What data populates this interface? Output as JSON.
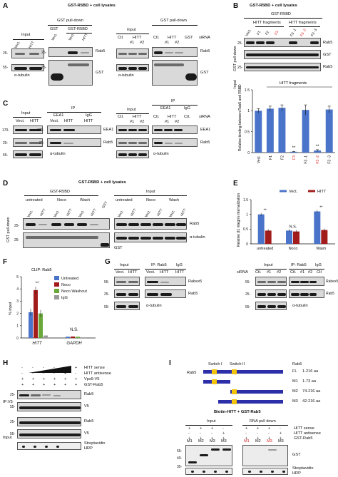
{
  "letters": [
    "A",
    "B",
    "C",
    "D",
    "E",
    "F",
    "G",
    "H",
    "I"
  ],
  "headings": {
    "a": "GST-R5BD + cell lysates",
    "b": "GST-R5BD + cell lysates",
    "d": "GST-R5BD + cell lysates",
    "i": "Biotin-HITT + GST-Rab5"
  },
  "labels": {
    "input": "Input",
    "gst_pulldown": "GST pull-down",
    "gst": "GST",
    "gst_r5bd": "GST-R5BD",
    "vect": "Vect.",
    "hitt": "HITT",
    "ctl": "Ctl.",
    "ctl2": "Ctl",
    "sirna": "siRNA",
    "n1": "#1",
    "n2": "#2",
    "rab5": "Rab5",
    "alpha_tubulin": "α-tubulin",
    "eea1": "EEA1",
    "ip": "IP",
    "igg": "IgG",
    "hitt_fragments": "HITT fragments",
    "gst_pulldown_axis": "GST pull-down",
    "input_axis": "Input",
    "untreated": "untreated",
    "noco": "Noco",
    "wash": "Wash",
    "rabex5": "Rabex5",
    "ip_rab5": "IP: Rab5",
    "hitt_sense": "HITT sense",
    "hitt_antisense": "HITT antisense",
    "vps9_v5": "Vps9-V5",
    "gst_rab5": "GST-Rab5",
    "ip_v5": "IP:V5",
    "v5": "V5",
    "streptavidin": "Streptavidin",
    "hrp": "HRP",
    "rna_pulldown": "RNA pull down",
    "switch1": "Switch I",
    "switch2": "Switch II",
    "clip_rab5": "CLIP: Rab5",
    "pct_input": "% input",
    "gapdh": "GAPDH",
    "plus": "+",
    "minus": "-",
    "sig2": "**",
    "ns": "N.S."
  },
  "markers": {
    "m25": "25-",
    "m55": "55-",
    "m170": "170-",
    "m40": "40-",
    "m35": "35-"
  },
  "fragments": [
    "F1",
    "F2",
    "F3",
    "F3 -1",
    "F3 -2",
    "F3 -3"
  ],
  "rab5_constructs": [
    {
      "name": "FL",
      "range": "1-216 aa"
    },
    {
      "name": "M1",
      "range": "1-73 aa"
    },
    {
      "name": "M2",
      "range": "74-216 aa"
    },
    {
      "name": "M3",
      "range": "42-216 aa"
    }
  ],
  "lanes_i": [
    "M1",
    "M2",
    "M3",
    "M3"
  ],
  "chart_data": [
    {
      "type": "bar",
      "panel": "B",
      "ylabel": "Relative binding between Rab5 and R5BD",
      "xlabel": "HITT fragments",
      "categories": [
        "Vect.",
        "F1",
        "F2",
        "F3",
        "F3 -1",
        "F3 -2",
        "F3 -3"
      ],
      "values": [
        1.0,
        1.05,
        1.07,
        0.02,
        1.02,
        0.05,
        1.03
      ],
      "errors": [
        0.05,
        0.06,
        0.07,
        0.01,
        0.12,
        0.02,
        0.08
      ],
      "significance": [
        "",
        "",
        "",
        "**",
        "",
        "**",
        ""
      ],
      "ylim": [
        0,
        1.5
      ],
      "yticks": [
        "0",
        "0.5",
        "1",
        "1.5"
      ],
      "color": "#4a74c9"
    },
    {
      "type": "bar",
      "panel": "E",
      "ylabel": "Relative β1 integrin internalization",
      "categories": [
        "untreated",
        "Noco",
        "Wash"
      ],
      "series": [
        {
          "name": "Vect.",
          "values": [
            1.0,
            0.45,
            1.1
          ],
          "color": "#4a74c9"
        },
        {
          "name": "HITT",
          "values": [
            0.45,
            0.42,
            0.47
          ],
          "color": "#a31c1c"
        }
      ],
      "significance": [
        "**",
        "N.S.",
        "**"
      ],
      "ylim": [
        0,
        1.5
      ],
      "yticks": [
        "0",
        "0.5",
        "1",
        "1.5"
      ]
    },
    {
      "type": "bar",
      "panel": "F",
      "ylabel": "% input",
      "categories": [
        "HITT",
        "GAPDH"
      ],
      "series": [
        {
          "name": "Untreated",
          "values": [
            2.1,
            0.1
          ],
          "color": "#4a74c9"
        },
        {
          "name": "Noco",
          "values": [
            3.9,
            0.12
          ],
          "color": "#a31c1c"
        },
        {
          "name": "Noco Washout",
          "values": [
            2.0,
            0.1
          ],
          "color": "#6aa83a"
        },
        {
          "name": "IgG",
          "values": [
            0.2,
            0.05
          ],
          "color": "#999999"
        }
      ],
      "significance": [
        "**",
        "N.S."
      ],
      "ylim": [
        0,
        5
      ],
      "yticks": [
        "0",
        "1",
        "2",
        "3",
        "4",
        "5"
      ]
    }
  ]
}
